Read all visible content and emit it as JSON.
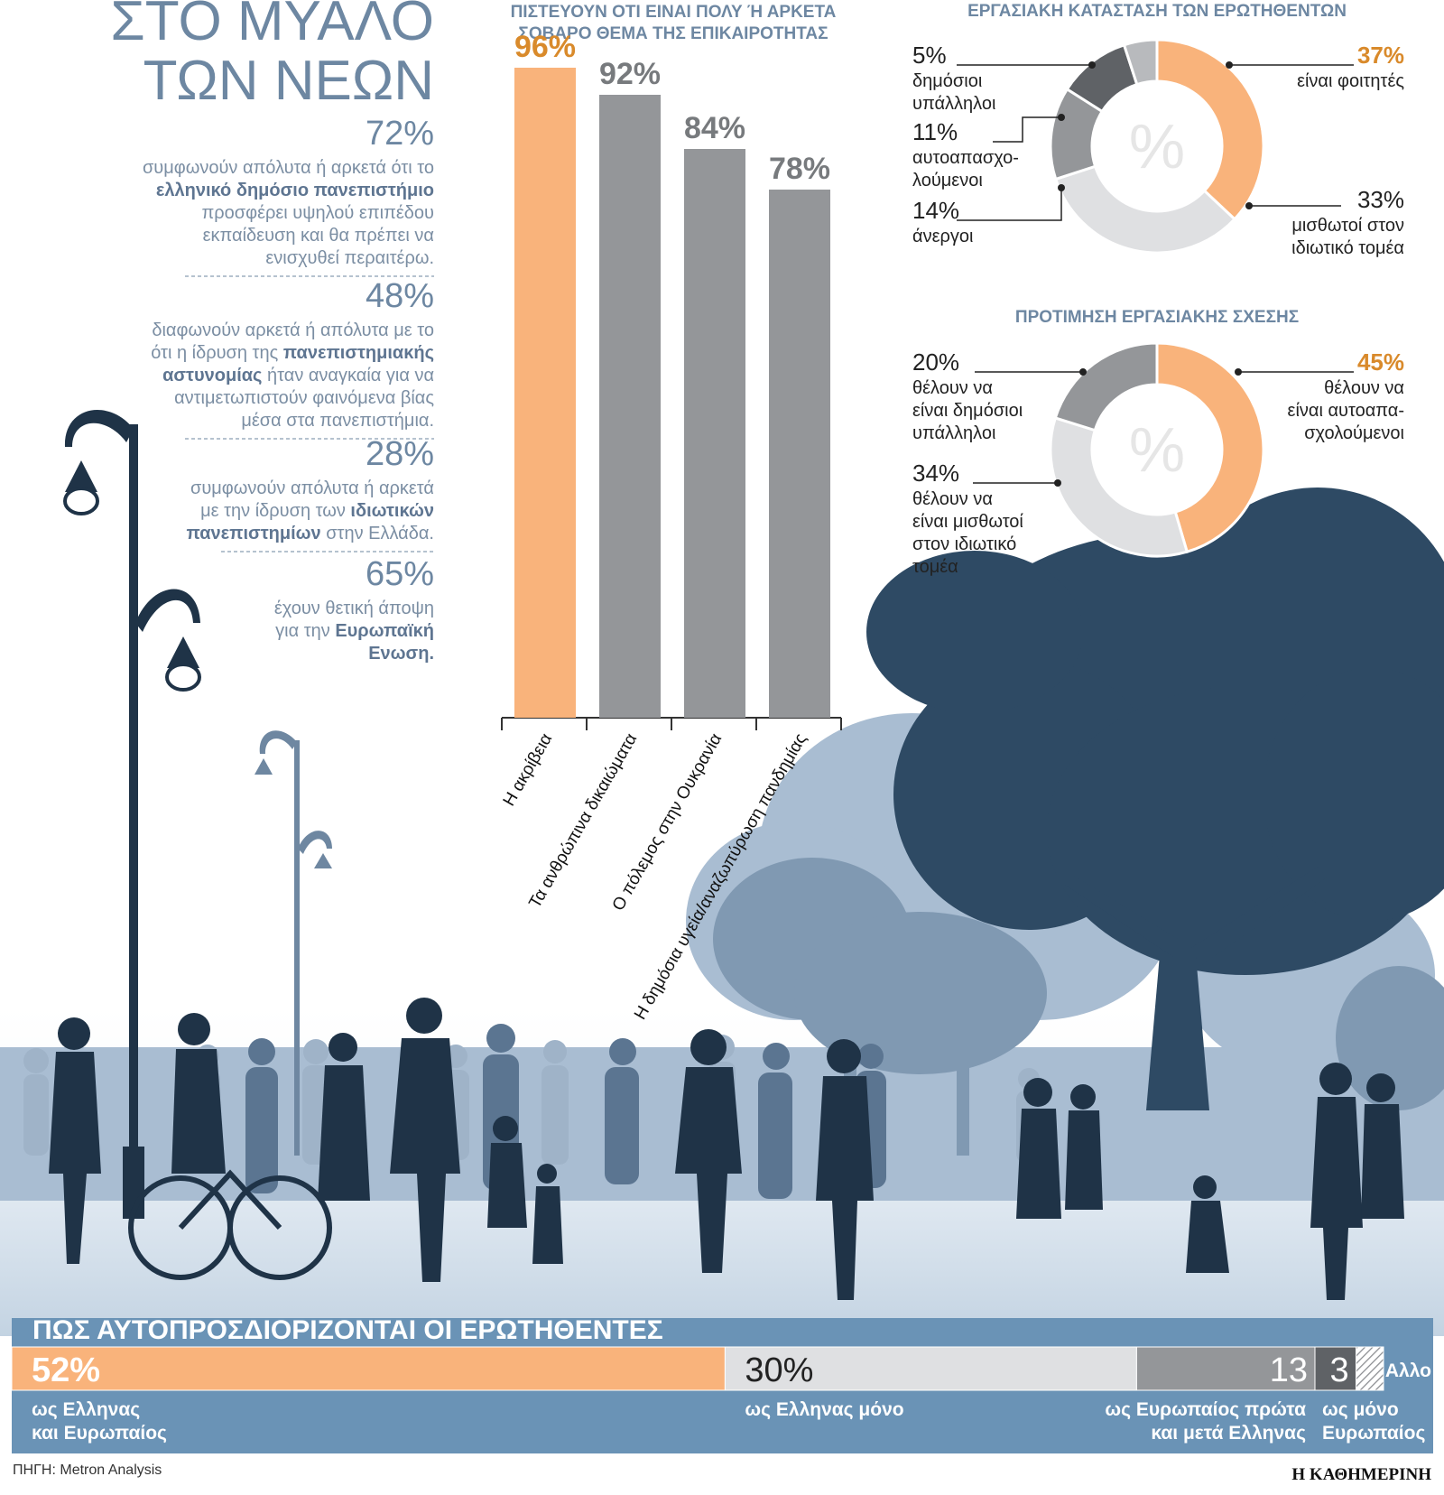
{
  "title": {
    "line1": "ΣΤΟ ΜΥΑΛΟ",
    "line2": "ΤΩΝ ΝΕΩΝ"
  },
  "stats": [
    {
      "pct": "72%",
      "lines": [
        [
          {
            "t": "συμφωνούν απόλυτα ή αρκετά ότι το",
            "b": false
          }
        ],
        [
          {
            "t": "ελληνικό δημόσιο πανεπιστήμιο",
            "b": true
          }
        ],
        [
          {
            "t": "προσφέρει υψηλού επιπέδου",
            "b": false
          }
        ],
        [
          {
            "t": "εκπαίδευση και θα πρέπει να",
            "b": false
          }
        ],
        [
          {
            "t": "ενισχυθεί περαιτέρω.",
            "b": false
          }
        ]
      ]
    },
    {
      "pct": "48%",
      "lines": [
        [
          {
            "t": "διαφωνούν αρκετά ή απόλυτα με το",
            "b": false
          }
        ],
        [
          {
            "t": "ότι η ίδρυση της ",
            "b": false
          },
          {
            "t": "πανεπιστημιακής",
            "b": true
          }
        ],
        [
          {
            "t": "αστυνομίας",
            "b": true
          },
          {
            "t": " ήταν αναγκαία για να",
            "b": false
          }
        ],
        [
          {
            "t": "αντιμετωπιστούν φαινόμενα βίας",
            "b": false
          }
        ],
        [
          {
            "t": "μέσα στα πανεπιστήμια.",
            "b": false
          }
        ]
      ]
    },
    {
      "pct": "28%",
      "lines": [
        [
          {
            "t": "συμφωνούν απόλυτα ή αρκετά",
            "b": false
          }
        ],
        [
          {
            "t": "με την ίδρυση των ",
            "b": false
          },
          {
            "t": "ιδιωτικών",
            "b": true
          }
        ],
        [
          {
            "t": "πανεπιστημίων",
            "b": true
          },
          {
            "t": " στην Ελλάδα.",
            "b": false
          }
        ]
      ]
    },
    {
      "pct": "65%",
      "lines": [
        [
          {
            "t": "έχουν θετική άποψη",
            "b": false
          }
        ],
        [
          {
            "t": "για την ",
            "b": false
          },
          {
            "t": "Ευρωπαϊκή",
            "b": true
          }
        ],
        [
          {
            "t": "Ενωση.",
            "b": true
          }
        ]
      ]
    }
  ],
  "chart_data": [
    {
      "type": "bar",
      "title_lines": [
        "ΠΙΣΤΕΥΟΥΝ ΟΤΙ ΕΙΝΑΙ ΠΟΛΥ Ή ΑΡΚΕΤΑ",
        "ΣΟΒΑΡΟ ΘΕΜΑ ΤΗΣ ΕΠΙΚΑΙΡΟΤΗΤΑΣ"
      ],
      "categories": [
        "Η ακρίβεια",
        "Τα ανθρώπινα δικαιώματα",
        "Ο πόλεμος στην Ουκρανία",
        "Η δημόσια υγεία/αναζωπύρωση πανδημίας"
      ],
      "values": [
        96,
        92,
        84,
        78
      ],
      "labels": [
        "96%",
        "92%",
        "84%",
        "78%"
      ],
      "colors": [
        "#f9b37b",
        "#949699",
        "#949699",
        "#949699"
      ],
      "label_colors": [
        "#d98a2b",
        "#777a7d",
        "#777a7d",
        "#777a7d"
      ],
      "ylim": [
        0,
        100
      ]
    },
    {
      "type": "pie",
      "title": "ΕΡΓΑΣΙΑΚΗ ΚΑΤΑΣΤΑΣΗ ΤΩΝ ΕΡΩΤΗΘΕΝΤΩΝ",
      "center_label": "%",
      "slices": [
        {
          "key": "students",
          "value": 37,
          "pct": "37%",
          "label_lines": [
            "είναι φοιτητές"
          ],
          "color": "#f9b37b",
          "pct_color": "#d98a2b"
        },
        {
          "key": "private",
          "value": 33,
          "pct": "33%",
          "label_lines": [
            "μισθωτοί στον",
            "ιδιωτικό τομέα"
          ],
          "color": "#dfe0e2",
          "pct_color": "#222222"
        },
        {
          "key": "unemployed",
          "value": 14,
          "pct": "14%",
          "label_lines": [
            "άνεργοι"
          ],
          "color": "#949699",
          "pct_color": "#222222"
        },
        {
          "key": "selfemployed",
          "value": 11,
          "pct": "11%",
          "label_lines": [
            "αυτοαπασχο-",
            "λούμενοι"
          ],
          "color": "#5f6266",
          "pct_color": "#222222"
        },
        {
          "key": "public",
          "value": 5,
          "pct": "5%",
          "label_lines": [
            "δημόσιοι",
            "υπάλληλοι"
          ],
          "color": "#b8babd",
          "pct_color": "#222222"
        }
      ]
    },
    {
      "type": "pie",
      "title": "ΠΡΟΤΙΜΗΣΗ ΕΡΓΑΣΙΑΚΗΣ ΣΧΕΣΗΣ",
      "center_label": "%",
      "slices": [
        {
          "key": "self",
          "value": 45,
          "pct": "45%",
          "label_lines": [
            "θέλουν να",
            "είναι αυτοαπα-",
            "σχολούμενοι"
          ],
          "color": "#f9b37b",
          "pct_color": "#d98a2b"
        },
        {
          "key": "private",
          "value": 34,
          "pct": "34%",
          "label_lines": [
            "θέλουν να",
            "είναι μισθωτοί",
            "στον ιδιωτικό",
            "τομέα"
          ],
          "color": "#dfe0e2",
          "pct_color": "#222222"
        },
        {
          "key": "public",
          "value": 20,
          "pct": "20%",
          "label_lines": [
            "θέλουν να",
            "είναι δημόσιοι",
            "υπάλληλοι"
          ],
          "color": "#949699",
          "pct_color": "#222222"
        }
      ]
    },
    {
      "type": "stacked_bar",
      "title": "ΠΩΣ ΑΥΤΟΠΡΟΣΔΙΟΡΙΖΟΝΤΑΙ ΟΙ ΕΡΩΤΗΘΕΝΤΕΣ",
      "segments": [
        {
          "value": 52,
          "pct": "52%",
          "label_lines": [
            "ως Ελληνας",
            "και Ευρωπαίος"
          ],
          "color": "#f9b37b",
          "text_color": "#ffffff"
        },
        {
          "value": 30,
          "pct": "30%",
          "label_lines": [
            "ως Ελληνας μόνο"
          ],
          "color": "#dfe0e2",
          "text_color": "#222222"
        },
        {
          "value": 13,
          "pct": "13",
          "label_lines": [
            "ως Ευρωπαίος πρώτα",
            "και μετά Ελληνας"
          ],
          "color": "#949699",
          "text_color": "#ffffff"
        },
        {
          "value": 3,
          "pct": "3",
          "label_lines": [
            "ως μόνο",
            "Ευρωπαίος"
          ],
          "color": "#5f6266",
          "text_color": "#ffffff"
        },
        {
          "value": 2,
          "pct": "",
          "label_lines": [],
          "color": "hatch",
          "text_color": "#ffffff"
        }
      ],
      "other_label": "Αλλο"
    }
  ],
  "source": "ΠΗΓΗ: Metron Analysis",
  "publisher": "Η ΚΑΘΗΜΕΡΙΝΗ",
  "colors": {
    "title": "#6d87a2",
    "stat_pct": "#6d87a2",
    "body_text": "#7b8ea3",
    "bold_text": "#5e7591",
    "chart_title": "#6d87a2",
    "band": "#6a93b6",
    "dark_silhouette": "#1f3347",
    "mid_silhouette": "#7c93aa",
    "light_silhouette": "#a6bad0"
  }
}
